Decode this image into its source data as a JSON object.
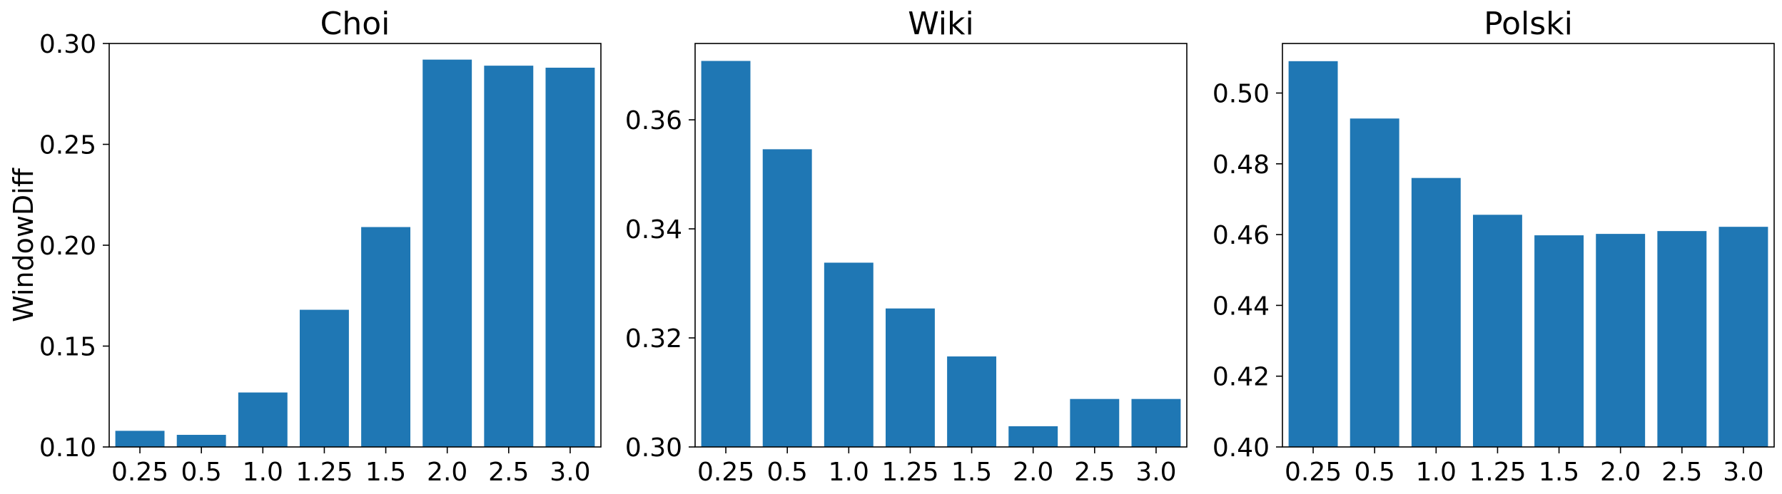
{
  "chart_data": [
    {
      "type": "bar",
      "title": "Choi",
      "ylabel": "WindowDiff",
      "xlabel": "",
      "categories": [
        "0.25",
        "0.5",
        "1.0",
        "1.25",
        "1.5",
        "2.0",
        "2.5",
        "3.0"
      ],
      "values": [
        0.108,
        0.106,
        0.127,
        0.168,
        0.209,
        0.292,
        0.289,
        0.288
      ],
      "ylim": [
        0.1,
        0.3
      ],
      "yticks": [
        "0.10",
        "0.15",
        "0.20",
        "0.25",
        "0.30"
      ],
      "color": "#1f77b4",
      "grid": false
    },
    {
      "type": "bar",
      "title": "Wiki",
      "ylabel": "",
      "xlabel": "",
      "categories": [
        "0.25",
        "0.5",
        "1.0",
        "1.25",
        "1.5",
        "2.0",
        "2.5",
        "3.0"
      ],
      "values": [
        0.3708,
        0.3546,
        0.3338,
        0.3254,
        0.3166,
        0.3038,
        0.3088,
        0.3088
      ],
      "ylim": [
        0.3,
        0.374
      ],
      "yticks": [
        "0.30",
        "0.32",
        "0.34",
        "0.36"
      ],
      "color": "#1f77b4",
      "grid": false
    },
    {
      "type": "bar",
      "title": "Polski",
      "ylabel": "",
      "xlabel": "",
      "categories": [
        "0.25",
        "0.5",
        "1.0",
        "1.25",
        "1.5",
        "2.0",
        "2.5",
        "3.0"
      ],
      "values": [
        0.509,
        0.4928,
        0.476,
        0.4656,
        0.4598,
        0.4602,
        0.461,
        0.4622
      ],
      "ylim": [
        0.4,
        0.514
      ],
      "yticks": [
        "0.40",
        "0.42",
        "0.44",
        "0.46",
        "0.48",
        "0.50"
      ],
      "color": "#1f77b4",
      "grid": false
    }
  ]
}
